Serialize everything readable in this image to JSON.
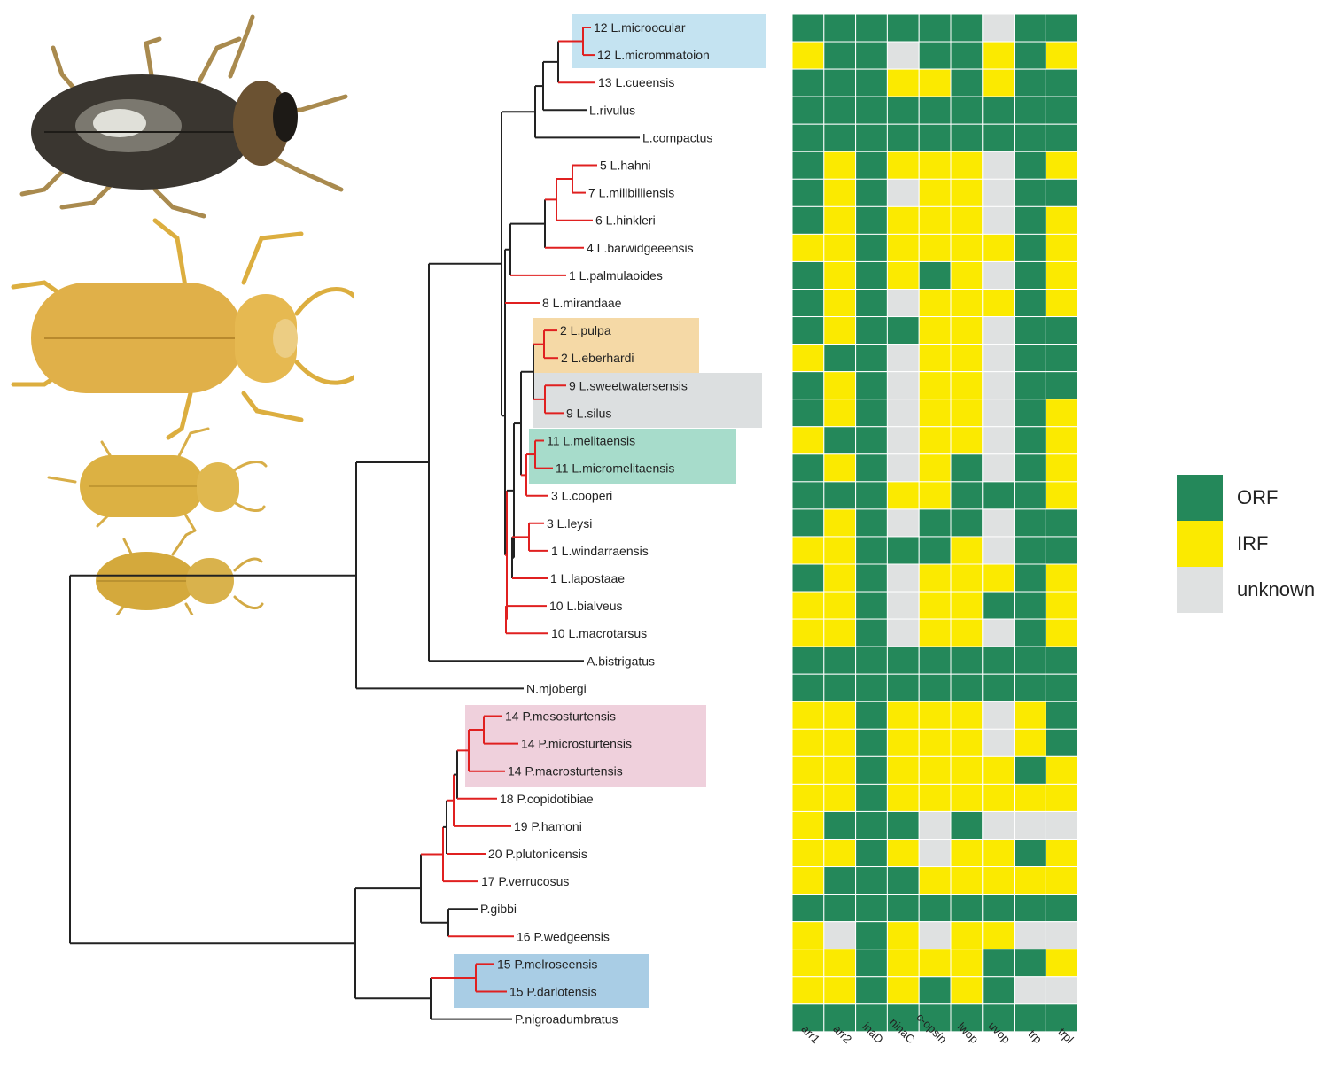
{
  "colors": {
    "ORF": "#24885a",
    "IRF": "#fbea00",
    "unknown": "#dfe1e1",
    "branch_black": "#222222",
    "branch_red": "#e02020"
  },
  "tips": [
    {
      "label": "12 L.microocular",
      "red": true
    },
    {
      "label": "12 L.micrommatoion",
      "red": true
    },
    {
      "label": "13 L.cueensis",
      "red": true
    },
    {
      "label": "L.rivulus",
      "red": false
    },
    {
      "label": "L.compactus",
      "red": false
    },
    {
      "label": "5 L.hahni",
      "red": true
    },
    {
      "label": "7 L.millbilliensis",
      "red": true
    },
    {
      "label": "6 L.hinkleri",
      "red": true
    },
    {
      "label": "4 L.barwidgeeensis",
      "red": true
    },
    {
      "label": "1 L.palmulaoides",
      "red": true
    },
    {
      "label": "8 L.mirandaae",
      "red": true
    },
    {
      "label": "2 L.pulpa",
      "red": true
    },
    {
      "label": "2 L.eberhardi",
      "red": true
    },
    {
      "label": "9 L.sweetwatersensis",
      "red": true
    },
    {
      "label": "9 L.silus",
      "red": true
    },
    {
      "label": "11 L.melitaensis",
      "red": true
    },
    {
      "label": "11 L.micromelitaensis",
      "red": true
    },
    {
      "label": "3 L.cooperi",
      "red": true
    },
    {
      "label": "3 L.leysi",
      "red": true
    },
    {
      "label": "1 L.windarraensis",
      "red": true
    },
    {
      "label": "1 L.lapostaae",
      "red": true
    },
    {
      "label": "10 L.bialveus",
      "red": true
    },
    {
      "label": "10 L.macrotarsus",
      "red": true
    },
    {
      "label": "A.bistrigatus",
      "red": false
    },
    {
      "label": "N.mjobergi",
      "red": false
    },
    {
      "label": "14 P.mesosturtensis",
      "red": true
    },
    {
      "label": "14 P.microsturtensis",
      "red": true
    },
    {
      "label": "14 P.macrosturtensis",
      "red": true
    },
    {
      "label": "18 P.copidotibiae",
      "red": true
    },
    {
      "label": "19 P.hamoni",
      "red": true
    },
    {
      "label": "20 P.plutonicensis",
      "red": true
    },
    {
      "label": "17 P.verrucosus",
      "red": true
    },
    {
      "label": "P.gibbi",
      "red": false
    },
    {
      "label": "16 P.wedgeensis",
      "red": true
    },
    {
      "label": "15 P.melroseensis",
      "red": true
    },
    {
      "label": "15 P.darlotensis",
      "red": true
    },
    {
      "label": "P.nigroadumbratus",
      "red": false
    }
  ],
  "heatmap": {
    "genes": [
      "arr1",
      "arr2",
      "inaD",
      "ninaC",
      "c-opsin",
      "lwop",
      "uvop",
      "trp",
      "trpl"
    ],
    "codes": "G = ORF, Y = IRF, U = unknown",
    "rows": [
      "GGGGGGUGG",
      "YGGUGGYGY",
      "GGGYYGYGG",
      "GGGGGGGGG",
      "GGGGGGGGG",
      "GYGYYYUGY",
      "GYGUYYUGG",
      "GYGYYYUGY",
      "YYGYYYYGY",
      "GYGYGYUGY",
      "GYGUYYYGY",
      "GYGGYYUGG",
      "YGGUYYUGG",
      "GYGUYYUGG",
      "GYGUYYUGY",
      "YGGUYYUGY",
      "GYGUYGUGY",
      "GGGYYGGGY",
      "GYGUGGUGG",
      "YYGGGYUGG",
      "GYGUYYYGY",
      "YYGUYYGGY",
      "YYGUYYUGY",
      "GGGGGGGGG",
      "GGGGGGGGG",
      "YYGYYYUYG",
      "YYGYYYUYG",
      "YYGYYYYGY",
      "YYGYYYYYY",
      "YGGGUGUUU",
      "YYGYUYYGY",
      "YGGGYYYYY",
      "GGGGGGGGG",
      "YUGYUYYUU",
      "YYGYYYGGY",
      "YYGYGYGUU",
      "GGGGGGGGG"
    ]
  },
  "legend": [
    {
      "label": "ORF",
      "key": "ORF"
    },
    {
      "label": "IRF",
      "key": "IRF"
    },
    {
      "label": "unknown",
      "key": "unknown"
    }
  ],
  "clade_highlights": [
    {
      "name": "microocular-clade",
      "color": "#c4e3f1"
    },
    {
      "name": "pulpa-clade",
      "color": "#f5d9a6"
    },
    {
      "name": "sweetwatersensis-clade",
      "color": "#dcdfe0"
    },
    {
      "name": "melitaensis-clade",
      "color": "#a7dccb"
    },
    {
      "name": "sturtensis-clade",
      "color": "#efd0dc"
    },
    {
      "name": "melroseensis-clade",
      "color": "#a9cde5"
    }
  ],
  "beetle_icons": [
    "dark-diving-beetle",
    "large-pale-stygobitic-beetle",
    "medium-pale-stygobitic-beetle",
    "small-pale-stygobitic-beetle"
  ]
}
